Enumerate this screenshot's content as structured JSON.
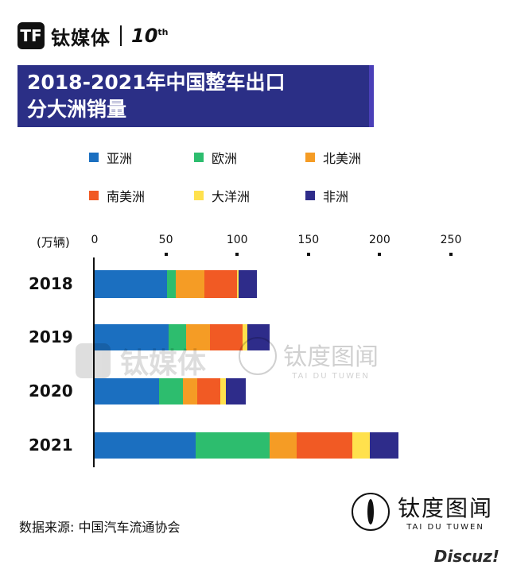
{
  "brand": {
    "logo": "TF",
    "name": "钛媒体",
    "anniversary": "10",
    "anniversary_sup": "th"
  },
  "chart_data": {
    "type": "bar",
    "orientation": "horizontal",
    "stacked": true,
    "title_line1": "2018-2021年中国整车出口",
    "title_line2": "分大洲销量",
    "unit_label": "(万辆)",
    "xlim": [
      0,
      250
    ],
    "xticks": [
      0,
      50,
      100,
      150,
      200,
      250
    ],
    "categories": [
      "2018",
      "2019",
      "2020",
      "2021"
    ],
    "series": [
      {
        "name": "亚洲",
        "color": "#1b6fc0",
        "values": [
          51,
          52,
          45,
          71
        ]
      },
      {
        "name": "欧洲",
        "color": "#2dbd6e",
        "values": [
          6,
          12,
          17,
          52
        ]
      },
      {
        "name": "北美洲",
        "color": "#f59c25",
        "values": [
          20,
          17,
          10,
          19
        ]
      },
      {
        "name": "南美洲",
        "color": "#f15a24",
        "values": [
          23,
          23,
          16,
          39
        ]
      },
      {
        "name": "大洋洲",
        "color": "#ffe14d",
        "values": [
          1,
          3,
          4,
          12
        ]
      },
      {
        "name": "非洲",
        "color": "#2e2c8a",
        "values": [
          13,
          16,
          14,
          20
        ]
      }
    ]
  },
  "source": "数据来源: 中国汽车流通协会",
  "watermark": {
    "title": "钛度图闻",
    "sub": "TAI DU TUWEN"
  },
  "stamp": {
    "title": "钛度图闻",
    "sub": "TAI DU TUWEN"
  },
  "footer": {
    "discuz": "Discuz!"
  }
}
